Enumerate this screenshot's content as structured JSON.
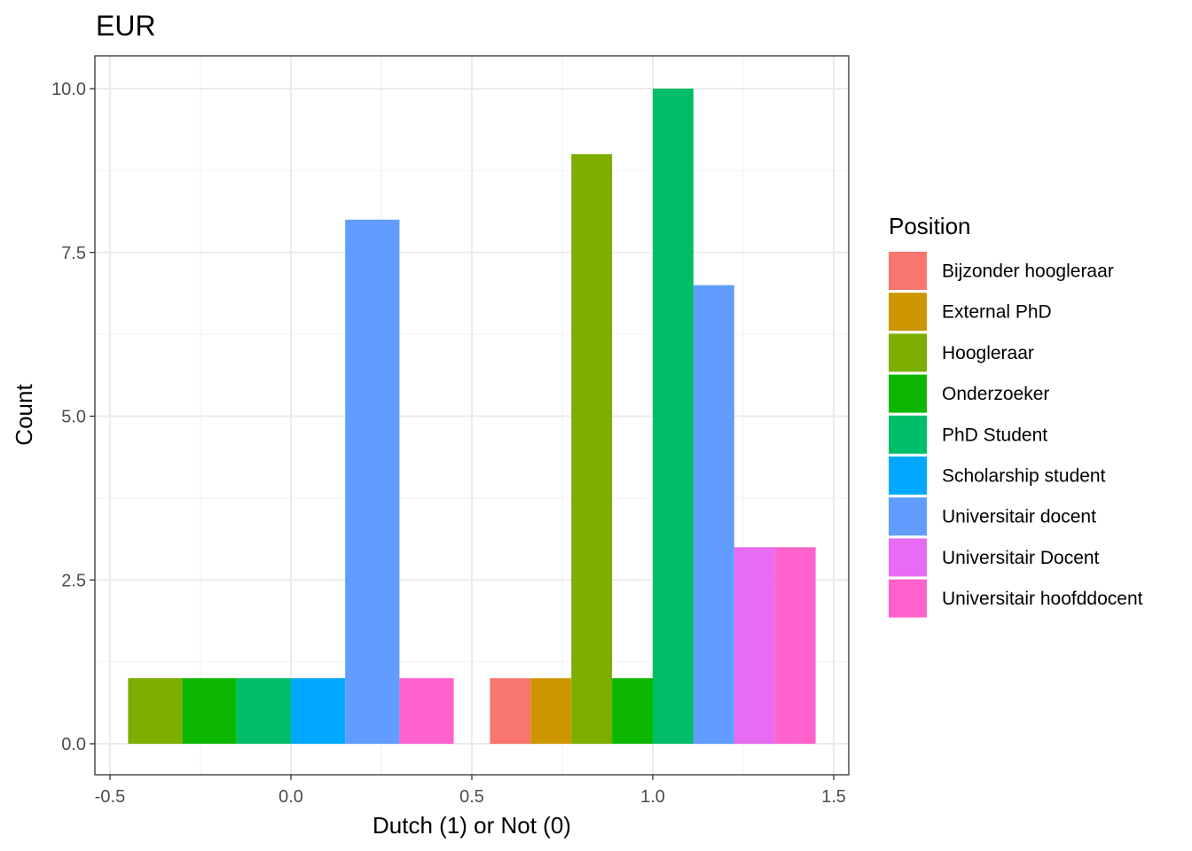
{
  "chart_data": {
    "type": "bar",
    "title": "EUR",
    "xlabel": "Dutch (1) or Not (0)",
    "ylabel": "Count",
    "xlim": [
      -0.5,
      1.5
    ],
    "ylim": [
      0,
      10
    ],
    "x_ticks": [
      "-0.5",
      "0.0",
      "0.5",
      "1.0",
      "1.5"
    ],
    "y_ticks": [
      "0.0",
      "2.5",
      "5.0",
      "7.5",
      "10.0"
    ],
    "grid": true,
    "legend": {
      "title": "Position",
      "placement": "right",
      "entries": [
        {
          "label": "Bijzonder hoogleraar",
          "color": "#F8766D"
        },
        {
          "label": "External PhD",
          "color": "#CD9600"
        },
        {
          "label": "Hoogleraar",
          "color": "#7CAE00"
        },
        {
          "label": "Onderzoeker",
          "color": "#0CB702"
        },
        {
          "label": "PhD Student",
          "color": "#00BE67"
        },
        {
          "label": "Scholarship student",
          "color": "#00A9FF"
        },
        {
          "label": "Universitair docent",
          "color": "#619CFF"
        },
        {
          "label": "Universitair Docent",
          "color": "#E76BF3"
        },
        {
          "label": "Universitair hoofddocent",
          "color": "#FF61CC"
        }
      ]
    },
    "groups": [
      {
        "x": 0,
        "bars": [
          {
            "series": "Hoogleraar",
            "value": 1
          },
          {
            "series": "Onderzoeker",
            "value": 1
          },
          {
            "series": "PhD Student",
            "value": 1
          },
          {
            "series": "Scholarship student",
            "value": 1
          },
          {
            "series": "Universitair docent",
            "value": 8
          },
          {
            "series": "Universitair hoofddocent",
            "value": 1
          }
        ]
      },
      {
        "x": 1,
        "bars": [
          {
            "series": "Bijzonder hoogleraar",
            "value": 1
          },
          {
            "series": "External PhD",
            "value": 1
          },
          {
            "series": "Hoogleraar",
            "value": 9
          },
          {
            "series": "Onderzoeker",
            "value": 1
          },
          {
            "series": "PhD Student",
            "value": 10
          },
          {
            "series": "Universitair docent",
            "value": 7
          },
          {
            "series": "Universitair Docent",
            "value": 3
          },
          {
            "series": "Universitair hoofddocent",
            "value": 3
          }
        ]
      }
    ],
    "bar_group_width": 0.9
  }
}
